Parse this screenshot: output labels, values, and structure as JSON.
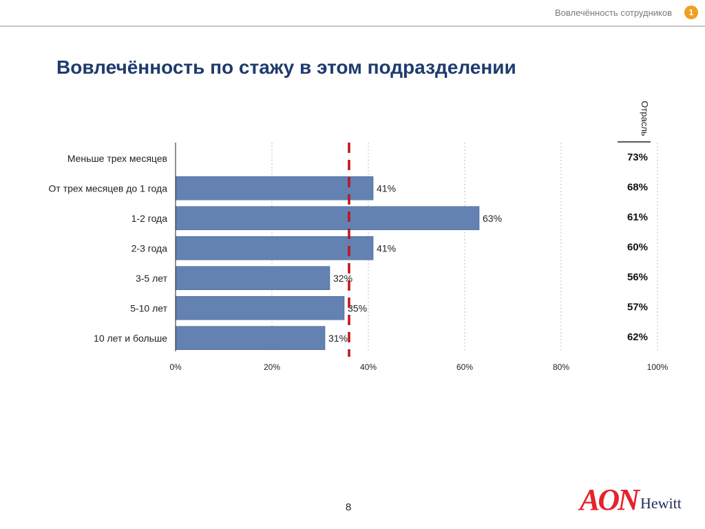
{
  "header": {
    "title": "Вовлечённость сотрудников",
    "badge": "1"
  },
  "page": {
    "title": "Вовлечённость по стажу в этом подразделении",
    "number": "8"
  },
  "logo": {
    "brand": "AON",
    "sub": "Hewitt"
  },
  "colors": {
    "bar": "#6381b1",
    "reference_line": "#c0141c",
    "title": "#1f3b6e",
    "accent": "#f0a020"
  },
  "chart_data": {
    "type": "bar",
    "orientation": "horizontal",
    "categories": [
      "Меньше трех месяцев",
      "От трех месяцев до 1 года",
      "1-2 года",
      "2-3 года",
      "3-5 лет",
      "5-10 лет",
      "10 лет и больше"
    ],
    "values": [
      null,
      41,
      63,
      41,
      32,
      35,
      31
    ],
    "value_labels": [
      "",
      "41%",
      "63%",
      "41%",
      "32%",
      "35%",
      "31%"
    ],
    "xlim": [
      0,
      100
    ],
    "x_ticks": [
      0,
      20,
      40,
      60,
      80,
      100
    ],
    "x_tick_labels": [
      "0%",
      "20%",
      "40%",
      "60%",
      "80%",
      "100%"
    ],
    "reference_value": 36,
    "grid": "vertical dotted",
    "industry_column": {
      "header": "Отрасль",
      "values": [
        "73%",
        "68%",
        "61%",
        "60%",
        "56%",
        "57%",
        "62%"
      ]
    }
  }
}
